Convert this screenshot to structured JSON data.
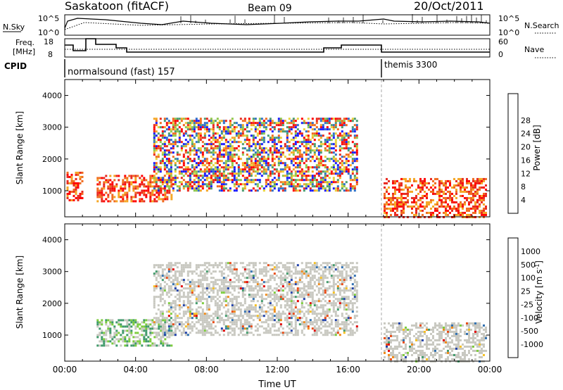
{
  "header": {
    "station": "Saskatoon (fitACF)",
    "beam": "Beam 09",
    "date": "20/Oct/2011"
  },
  "top_panels": {
    "nsky_label": "N.Sky",
    "nsearch_label": "N.Search",
    "left_ticks": [
      "10^5",
      "10^0"
    ],
    "right_ticks": [
      "10^5",
      "10^0"
    ],
    "freq_label_1": "Freq.",
    "freq_label_2": "[MHz]",
    "freq_ticks": [
      "18",
      "8"
    ],
    "nave_label": "Nave",
    "nave_ticks": [
      "60",
      "0"
    ],
    "cpid_label": "CPID",
    "cpid_segments": [
      {
        "name": "normalsound (fast) 157",
        "start_hour": 0
      },
      {
        "name": "themis 3300",
        "start_hour": 18
      }
    ]
  },
  "chart_data": [
    {
      "type": "heatmap",
      "panel": "power",
      "ylabel": "Slant Range [km]",
      "xlabel": "",
      "x_ticks": [],
      "xlim_hours": [
        0,
        24
      ],
      "ylim": [
        180,
        4500
      ],
      "y_ticks": [
        "1000",
        "2000",
        "3000",
        "4000"
      ],
      "colorbar": {
        "label": "Power [dB]",
        "tick_labels": [
          "4",
          "8",
          "12",
          "16",
          "20",
          "24",
          "28"
        ],
        "colors": [
          "#1a1aff",
          "#2d6fc8",
          "#4a9c6e",
          "#8fc74a",
          "#e8d23c",
          "#f5a623",
          "#f06a1e",
          "#e8281e",
          "#ff0000"
        ]
      },
      "features": [
        {
          "t_start": 0.1,
          "t_end": 1.0,
          "r_min": 700,
          "r_max": 1600,
          "level": "high"
        },
        {
          "t_start": 1.8,
          "t_end": 6.0,
          "r_min": 700,
          "r_max": 1500,
          "level": "high"
        },
        {
          "t_start": 5.0,
          "t_end": 16.5,
          "r_min": 1000,
          "r_max": 3300,
          "level": "mixed"
        },
        {
          "t_start": 18.0,
          "t_end": 23.8,
          "r_min": 200,
          "r_max": 1400,
          "level": "high"
        }
      ]
    },
    {
      "type": "heatmap",
      "panel": "velocity",
      "ylabel": "Slant Range [km]",
      "xlabel": "Time UT",
      "x_ticks": [
        "00:00",
        "04:00",
        "08:00",
        "12:00",
        "16:00",
        "20:00",
        "00:00"
      ],
      "xlim_hours": [
        0,
        24
      ],
      "ylim": [
        180,
        4500
      ],
      "y_ticks": [
        "1000",
        "2000",
        "3000",
        "4000"
      ],
      "colorbar": {
        "label": "Velocity [m s^-1]",
        "tick_labels": [
          "1000",
          "500",
          "100",
          "25",
          "-25",
          "-100",
          "-500",
          "-1000"
        ],
        "colors": [
          "#1f3fa8",
          "#2f6fb0",
          "#3f9a6a",
          "#7ccc3c",
          "#c8c8c0",
          "#f5c020",
          "#f08a18",
          "#e84a14",
          "#e00000"
        ]
      },
      "features": [
        {
          "t_start": 1.8,
          "t_end": 6.0,
          "r_min": 700,
          "r_max": 1500,
          "level": "positive"
        },
        {
          "t_start": 5.0,
          "t_end": 16.5,
          "r_min": 1000,
          "r_max": 3300,
          "level": "ground scatter"
        },
        {
          "t_start": 18.0,
          "t_end": 23.8,
          "r_min": 200,
          "r_max": 1400,
          "level": "ground scatter"
        }
      ]
    }
  ]
}
